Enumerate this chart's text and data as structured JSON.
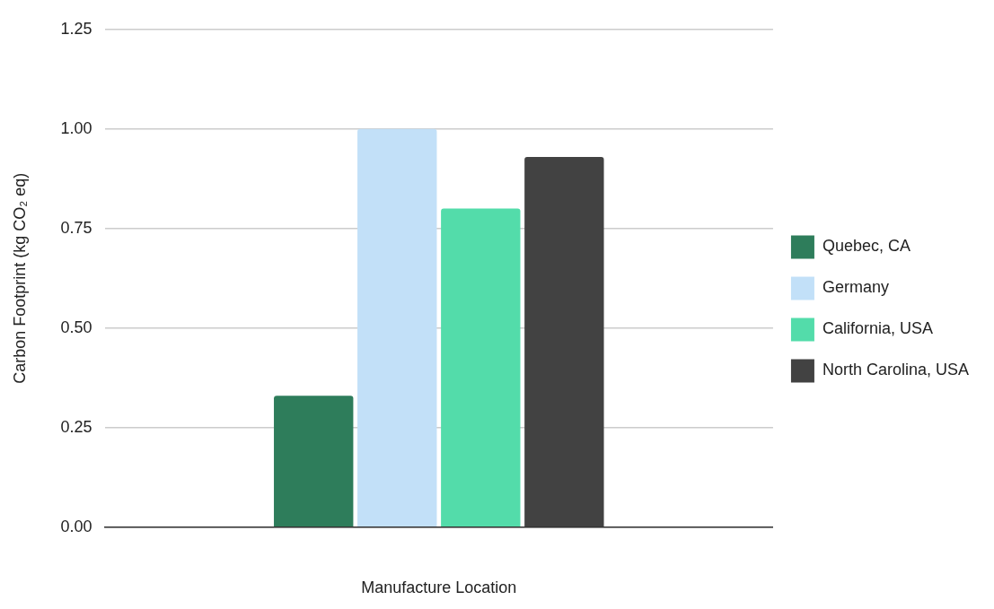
{
  "chart_data": {
    "type": "bar",
    "xlabel": "Manufacture Location",
    "ylabel": "Carbon Footprint (kg CO₂ eq)",
    "categories": [
      null
    ],
    "series": [
      {
        "name": "Quebec, CA",
        "color": "#2e7d5b",
        "values": [
          0.33
        ]
      },
      {
        "name": "Germany",
        "color": "#c2e0f8",
        "values": [
          1.0
        ]
      },
      {
        "name": "California, USA",
        "color": "#53dcaa",
        "values": [
          0.8
        ]
      },
      {
        "name": "North Carolina, USA",
        "color": "#424242",
        "values": [
          0.93
        ]
      }
    ],
    "ylim": [
      0,
      1.25
    ],
    "yticks": [
      {
        "value": 0,
        "label": "0.00"
      },
      {
        "value": 0.25,
        "label": "0.25"
      },
      {
        "value": 0.5,
        "label": "0.50"
      },
      {
        "value": 0.75,
        "label": "0.75"
      },
      {
        "value": 1,
        "label": "1.00"
      },
      {
        "value": 1.25,
        "label": "1.25"
      }
    ],
    "grid": "y",
    "legend": "right"
  }
}
